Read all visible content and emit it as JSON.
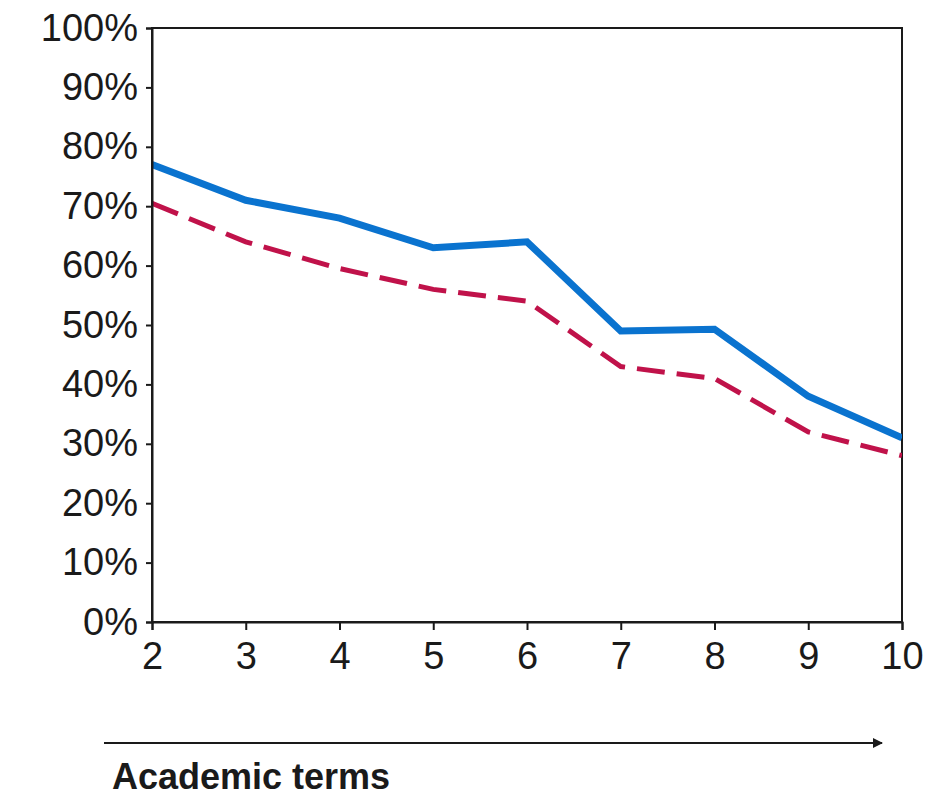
{
  "chart_data": {
    "type": "line",
    "x_label": "Academic terms",
    "x": [
      2,
      3,
      4,
      5,
      6,
      7,
      8,
      9,
      10
    ],
    "xlim": [
      2,
      10
    ],
    "xticks": [
      2,
      3,
      4,
      5,
      6,
      7,
      8,
      9,
      10
    ],
    "ylim": [
      0,
      100
    ],
    "yticks": [
      {
        "value": 0,
        "label": "0%"
      },
      {
        "value": 10,
        "label": "10%"
      },
      {
        "value": 20,
        "label": "20%"
      },
      {
        "value": 30,
        "label": "30%"
      },
      {
        "value": 40,
        "label": "40%"
      },
      {
        "value": 50,
        "label": "50%"
      },
      {
        "value": 60,
        "label": "60%"
      },
      {
        "value": 70,
        "label": "70%"
      },
      {
        "value": 80,
        "label": "80%"
      },
      {
        "value": 90,
        "label": "90%"
      },
      {
        "value": 100,
        "label": "100%"
      }
    ],
    "grid": false,
    "series": [
      {
        "color": "#0a73cf",
        "line_style": "solid",
        "values": [
          77,
          71,
          68,
          63,
          64,
          49,
          49.3,
          38,
          31
        ]
      },
      {
        "color": "#c0124a",
        "line_style": "dashed",
        "values": [
          70.5,
          64,
          59.5,
          56,
          54,
          43,
          41,
          32,
          28
        ]
      }
    ]
  }
}
